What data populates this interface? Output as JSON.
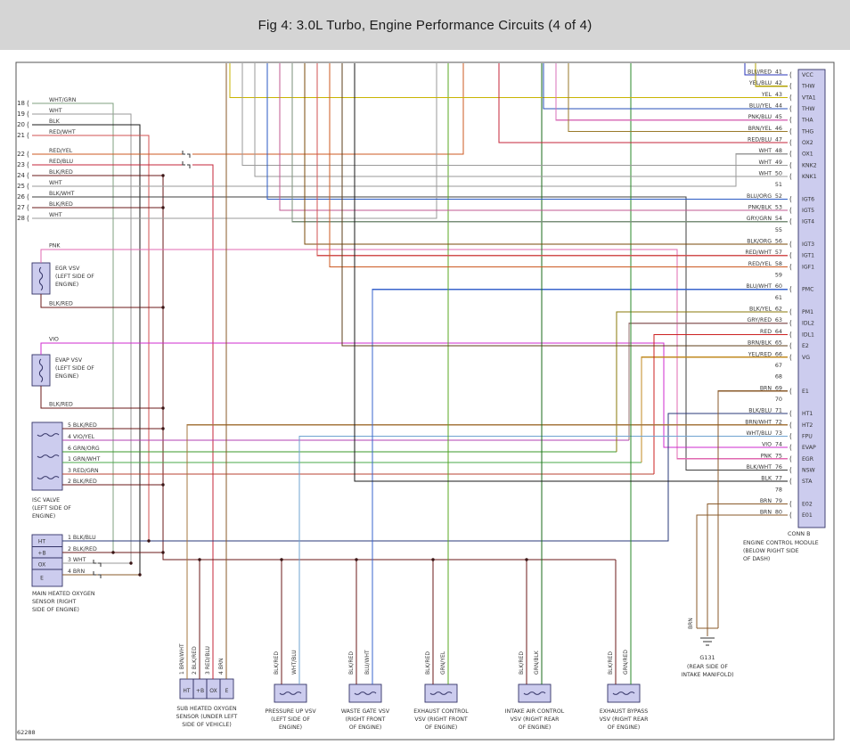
{
  "title": "Fig 4: 3.0L Turbo, Engine Performance Circuits (4 of 4)",
  "figure_number": "62288",
  "wire_colors": {
    "BLK": "#1a1a1a",
    "WHT": "#9a9a9a",
    "RED": "#cc2222",
    "BRN": "#8a5a2a",
    "PNK": "#e06ab0",
    "VIO": "#cf2bcf",
    "YEL": "#c9b402",
    "GRN": "#2a9a2a",
    "GRY": "#8a8a8a",
    "WHT/GRN": "#7fa07f",
    "WHT/BLU": "#6fa3d0",
    "RED/WHT": "#d25050",
    "RED/YEL": "#cc5a22",
    "RED/BLU": "#c42538",
    "RED/GRN": "#b84030",
    "BLK/RED": "#6b1818",
    "BLK/WHT": "#3f3f3f",
    "BLK/BLU": "#2a3a78",
    "BLK/YEL": "#8a7a08",
    "BLK/ORG": "#7a4a08",
    "BLU/RED": "#2a35b8",
    "BLU/YEL": "#2a50b8",
    "BLU/ORG": "#2a5ac4",
    "BLU/WHT": "#3a64cc",
    "YEL/BLU": "#b2a202",
    "YEL/RED": "#c08a20",
    "BRN/WHT": "#a5773f",
    "BRN/YEL": "#9a7a2a",
    "BRN/BLK": "#5c3c18",
    "PNK/BLU": "#d870b8",
    "PNK/BLK": "#c05890",
    "GRY/GRN": "#7a8f7a",
    "GRY/RED": "#9a7070",
    "GRN/ORG": "#3a9a2a",
    "GRN/WHT": "#4aa84a",
    "GRN/YEL": "#58a822",
    "GRN/BLK": "#1a6b1a",
    "GRN/RED": "#2a8a2a",
    "VIO/YEL": "#b040b0"
  },
  "left_connector": {
    "pins": [
      {
        "num": "18",
        "wire": "WHT/GRN"
      },
      {
        "num": "19",
        "wire": "WHT"
      },
      {
        "num": "20",
        "wire": "BLK"
      },
      {
        "num": "21",
        "wire": "RED/WHT"
      },
      {
        "num": "22",
        "wire": "RED/YEL"
      },
      {
        "num": "23",
        "wire": "RED/BLU"
      },
      {
        "num": "24",
        "wire": "BLK/RED"
      },
      {
        "num": "25",
        "wire": "WHT"
      },
      {
        "num": "26",
        "wire": "BLK/WHT"
      },
      {
        "num": "27",
        "wire": "BLK/RED"
      },
      {
        "num": "28",
        "wire": "WHT"
      }
    ]
  },
  "ecm": {
    "conn": "CONN B",
    "title": [
      "ENGINE CONTROL MODULE",
      "(BELOW RIGHT SIDE",
      "OF DASH)"
    ],
    "pins": [
      {
        "num": "41",
        "wire": "BLU/RED",
        "name": "VCC"
      },
      {
        "num": "42",
        "wire": "YEL/BLU",
        "name": "THW"
      },
      {
        "num": "43",
        "wire": "YEL",
        "name": "VTA1"
      },
      {
        "num": "44",
        "wire": "BLU/YEL",
        "name": "THW"
      },
      {
        "num": "45",
        "wire": "PNK/BLU",
        "name": "THA"
      },
      {
        "num": "46",
        "wire": "BRN/YEL",
        "name": "THG"
      },
      {
        "num": "47",
        "wire": "RED/BLU",
        "name": "OX2"
      },
      {
        "num": "48",
        "wire": "WHT",
        "name": "OX1"
      },
      {
        "num": "49",
        "wire": "WHT",
        "name": "KNK2"
      },
      {
        "num": "50",
        "wire": "WHT",
        "name": "KNK1"
      },
      {
        "num": "51",
        "wire": "",
        "name": ""
      },
      {
        "num": "52",
        "wire": "BLU/ORG",
        "name": "IGT6"
      },
      {
        "num": "53",
        "wire": "PNK/BLK",
        "name": "IGT5"
      },
      {
        "num": "54",
        "wire": "GRY/GRN",
        "name": "IGT4"
      },
      {
        "num": "55",
        "wire": "",
        "name": ""
      },
      {
        "num": "56",
        "wire": "BLK/ORG",
        "name": "IGT3"
      },
      {
        "num": "57",
        "wire": "RED/WHT",
        "name": "IGT1"
      },
      {
        "num": "58",
        "wire": "RED/YEL",
        "name": "IGF1"
      },
      {
        "num": "59",
        "wire": "",
        "name": ""
      },
      {
        "num": "60",
        "wire": "BLU/WHT",
        "name": "PMC"
      },
      {
        "num": "61",
        "wire": "",
        "name": ""
      },
      {
        "num": "62",
        "wire": "BLK/YEL",
        "name": "PM1"
      },
      {
        "num": "63",
        "wire": "GRY/RED",
        "name": "IDL2"
      },
      {
        "num": "64",
        "wire": "RED",
        "name": "IDL1"
      },
      {
        "num": "65",
        "wire": "BRN/BLK",
        "name": "E2"
      },
      {
        "num": "66",
        "wire": "YEL/RED",
        "name": "VG"
      },
      {
        "num": "67",
        "wire": "",
        "name": ""
      },
      {
        "num": "68",
        "wire": "",
        "name": ""
      },
      {
        "num": "69",
        "wire": "BRN",
        "name": "E1"
      },
      {
        "num": "70",
        "wire": "",
        "name": ""
      },
      {
        "num": "71",
        "wire": "BLK/BLU",
        "name": "HT1"
      },
      {
        "num": "72",
        "wire": "BRN/WHT",
        "name": "HT2"
      },
      {
        "num": "73",
        "wire": "WHT/BLU",
        "name": "FPU"
      },
      {
        "num": "74",
        "wire": "VIO",
        "name": "EVAP"
      },
      {
        "num": "75",
        "wire": "PNK",
        "name": "EGR"
      },
      {
        "num": "76",
        "wire": "BLK/WHT",
        "name": "NSW"
      },
      {
        "num": "77",
        "wire": "BLK",
        "name": "STA"
      },
      {
        "num": "78",
        "wire": "",
        "name": ""
      },
      {
        "num": "79",
        "wire": "BRN",
        "name": "E02"
      },
      {
        "num": "80",
        "wire": "BRN",
        "name": "E01"
      }
    ]
  },
  "components": {
    "egr_vsv": {
      "title": "EGR VSV",
      "loc": [
        "(LEFT SIDE OF",
        "ENGINE)"
      ],
      "top_wire": "PNK",
      "bottom_wire": "BLK/RED"
    },
    "evap_vsv": {
      "title": "EVAP VSV",
      "loc": [
        "(LEFT SIDE OF",
        "ENGINE)"
      ],
      "top_wire": "VIO",
      "bottom_wire": "BLK/RED"
    },
    "isc_valve": {
      "title": "ISC VALVE",
      "loc": [
        "(LEFT SIDE OF",
        "ENGINE)"
      ],
      "pins": [
        [
          "5",
          "BLK/RED"
        ],
        [
          "4",
          "VIO/YEL"
        ],
        [
          "6",
          "GRN/ORG"
        ],
        [
          "1",
          "GRN/WHT"
        ],
        [
          "3",
          "RED/GRN"
        ],
        [
          "2",
          "BLK/RED"
        ]
      ]
    },
    "main_o2": {
      "title": [
        "MAIN HEATED OXYGEN",
        "SENSOR  (RIGHT",
        "SIDE OF ENGINE)"
      ],
      "cells": [
        "HT",
        "+B",
        "OX",
        "E"
      ],
      "pins": [
        [
          "1",
          "BLK/BLU"
        ],
        [
          "2",
          "BLK/RED"
        ],
        [
          "3",
          "WHT"
        ],
        [
          "4",
          "BRN"
        ]
      ]
    },
    "sub_o2": {
      "title": [
        "SUB HEATED OXYGEN",
        "SENSOR  (UNDER LEFT",
        "SIDE OF VEHICLE)"
      ],
      "cells": [
        "HT",
        "+B",
        "OX",
        "E"
      ],
      "pins": [
        [
          "1",
          "BRN/WHT"
        ],
        [
          "2",
          "BLK/RED"
        ],
        [
          "3",
          "RED/BLU"
        ],
        [
          "4",
          "BRN"
        ]
      ]
    },
    "vsvs": [
      {
        "title": [
          "PRESSURE UP VSV",
          "(LEFT SIDE OF",
          "ENGINE)"
        ],
        "wires": [
          "BLK/RED",
          "WHT/BLU"
        ]
      },
      {
        "title": [
          "WASTE GATE VSV",
          "(RIGHT FRONT",
          "OF ENGINE)"
        ],
        "wires": [
          "BLK/RED",
          "BLU/WHT"
        ]
      },
      {
        "title": [
          "EXHAUST CONTROL",
          "VSV  (RIGHT FRONT",
          "OF ENGINE)"
        ],
        "wires": [
          "BLK/RED",
          "GRN/YEL"
        ]
      },
      {
        "title": [
          "INTAKE AIR CONTROL",
          "VSV  (RIGHT REAR",
          "OF ENGINE)"
        ],
        "wires": [
          "BLK/RED",
          "GRN/BLK"
        ]
      },
      {
        "title": [
          "EXHAUST BYPASS",
          "VSV  (RIGHT REAR",
          "OF ENGINE)"
        ],
        "wires": [
          "BLK/RED",
          "GRN/RED"
        ]
      }
    ],
    "ground": {
      "label": "G131",
      "loc": [
        "(REAR SIDE OF",
        "INTAKE MANIFOLD)"
      ],
      "wire": "BRN"
    }
  }
}
